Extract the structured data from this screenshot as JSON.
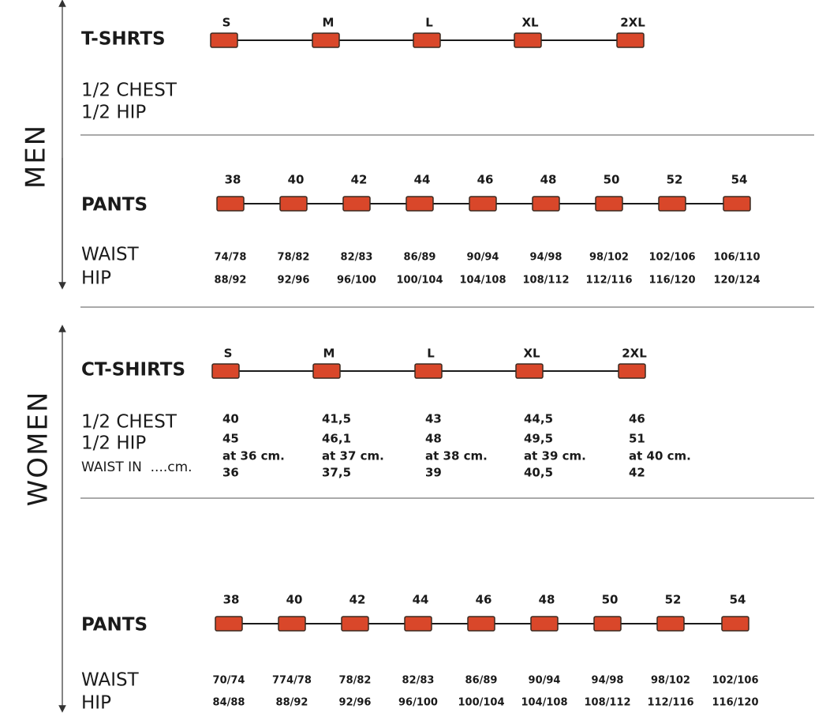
{
  "sections": [
    {
      "label": "MEN",
      "groups": [
        {
          "name": "T-SHRTS",
          "sizes": [
            "S",
            "M",
            "L",
            "XL",
            "2XL"
          ],
          "rows": [
            {
              "label": "1/2 CHEST"
            },
            {
              "label": "1/2 HIP"
            }
          ]
        },
        {
          "name": "PANTS",
          "sizes": [
            "38",
            "40",
            "42",
            "44",
            "46",
            "48",
            "50",
            "52",
            "54"
          ],
          "rows": [
            {
              "label": "WAIST",
              "values": [
                "74/78",
                "78/82",
                "82/83",
                "86/89",
                "90/94",
                "94/98",
                "98/102",
                "102/106",
                "106/110"
              ]
            },
            {
              "label": "HIP",
              "values": [
                "88/92",
                "92/96",
                "96/100",
                "100/104",
                "104/108",
                "108/112",
                "112/116",
                "116/120",
                "120/124"
              ]
            }
          ]
        }
      ]
    },
    {
      "label": "WOMEN",
      "groups": [
        {
          "name": "CT-SHIRTS",
          "sizes": [
            "S",
            "M",
            "L",
            "XL",
            "2XL"
          ],
          "rows": [
            {
              "label": "1/2 CHEST",
              "values": [
                "40",
                "41,5",
                "43",
                "44,5",
                "46"
              ]
            },
            {
              "label": "1/2 HIP",
              "values": [
                "45",
                "46,1",
                "48",
                "49,5",
                "51"
              ]
            },
            {
              "values": [
                "at 36 cm.",
                "at 37 cm.",
                "at 38 cm.",
                "at 39 cm.",
                "at 40 cm."
              ]
            },
            {
              "label": "WAIST IN  ....cm.",
              "values": [
                "36",
                "37,5",
                "39",
                "40,5",
                "42"
              ]
            }
          ]
        },
        {
          "name": "PANTS",
          "sizes": [
            "38",
            "40",
            "42",
            "44",
            "46",
            "48",
            "50",
            "52",
            "54"
          ],
          "rows": [
            {
              "label": "WAIST",
              "values": [
                "70/74",
                "774/78",
                "78/82",
                "82/83",
                "86/89",
                "90/94",
                "94/98",
                "98/102",
                "102/106"
              ]
            },
            {
              "label": "HIP",
              "values": [
                "84/88",
                "88/92",
                "92/96",
                "96/100",
                "100/104",
                "104/108",
                "108/112",
                "112/116",
                "116/120"
              ]
            }
          ]
        }
      ]
    }
  ]
}
